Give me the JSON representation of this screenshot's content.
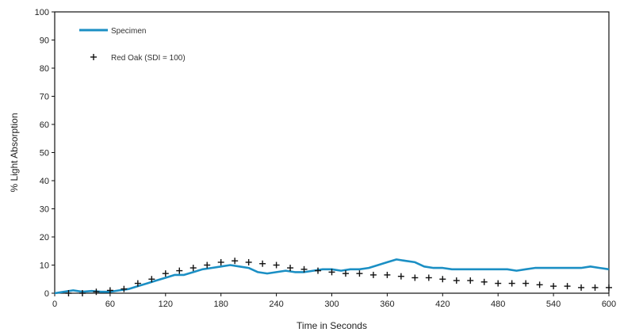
{
  "chart_data": {
    "type": "line",
    "title": "",
    "xlabel": "Time in Seconds",
    "ylabel": "% Light Absorption",
    "xlim": [
      0,
      600
    ],
    "ylim": [
      0,
      100
    ],
    "xticks": [
      0,
      60,
      120,
      180,
      240,
      300,
      360,
      420,
      480,
      540,
      600
    ],
    "yticks": [
      0,
      10,
      20,
      30,
      40,
      50,
      60,
      70,
      80,
      90,
      100
    ],
    "grid": false,
    "legend_position": "top-left",
    "series": [
      {
        "name": "Specimen",
        "style": "line",
        "color": "#1b8fc4",
        "x": [
          0,
          10,
          20,
          30,
          40,
          50,
          60,
          70,
          80,
          90,
          100,
          110,
          120,
          130,
          140,
          150,
          160,
          170,
          180,
          190,
          200,
          210,
          220,
          230,
          240,
          250,
          260,
          270,
          280,
          290,
          300,
          310,
          320,
          330,
          340,
          350,
          360,
          370,
          380,
          390,
          400,
          410,
          420,
          430,
          440,
          450,
          460,
          470,
          480,
          490,
          500,
          510,
          520,
          530,
          540,
          550,
          560,
          570,
          580,
          590,
          600
        ],
        "y": [
          0,
          0.5,
          1,
          0.5,
          0.8,
          0.5,
          0.5,
          1,
          1.5,
          2.5,
          3.5,
          4.5,
          5.5,
          6.5,
          6.5,
          7.5,
          8.5,
          9,
          9.5,
          10,
          9.5,
          9,
          7.5,
          7,
          7.5,
          8,
          7.5,
          7.5,
          8,
          8.5,
          8.5,
          8,
          8.5,
          8.5,
          9,
          10,
          11,
          12,
          11.5,
          11,
          9.5,
          9,
          9,
          8.5,
          8.5,
          8.5,
          8.5,
          8.5,
          8.5,
          8.5,
          8,
          8.5,
          9,
          9,
          9,
          9,
          9,
          9,
          9.5,
          9,
          8.5
        ]
      },
      {
        "name": "Red Oak (SDI = 100)",
        "style": "marker",
        "color": "#111111",
        "x": [
          15,
          30,
          45,
          60,
          75,
          90,
          105,
          120,
          135,
          150,
          165,
          180,
          195,
          210,
          225,
          240,
          255,
          270,
          285,
          300,
          315,
          330,
          345,
          360,
          375,
          390,
          405,
          420,
          435,
          450,
          465,
          480,
          495,
          510,
          525,
          540,
          555,
          570,
          585,
          600
        ],
        "y": [
          0,
          0,
          0.5,
          1,
          1.5,
          3.5,
          5,
          7,
          8,
          9,
          10,
          11,
          11.5,
          11,
          10.5,
          10,
          9,
          8.5,
          8,
          7.5,
          7,
          7,
          6.5,
          6.5,
          6,
          5.5,
          5.5,
          5,
          4.5,
          4.5,
          4,
          3.5,
          3.5,
          3.5,
          3,
          2.5,
          2.5,
          2,
          2,
          2
        ]
      }
    ]
  }
}
